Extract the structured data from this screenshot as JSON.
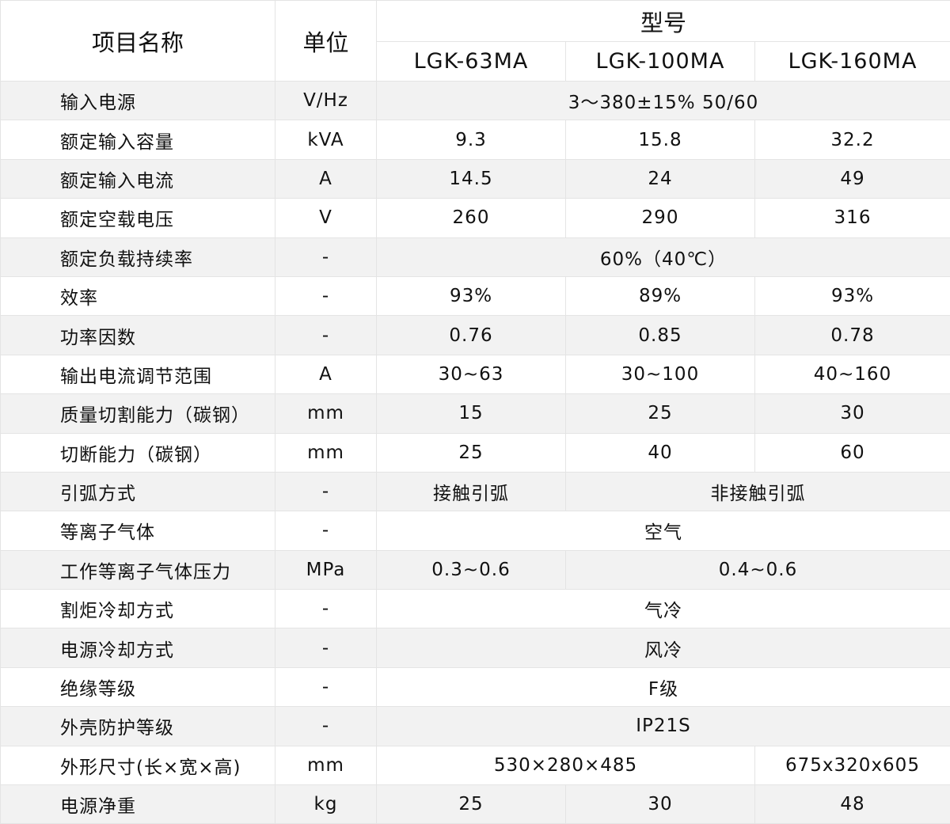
{
  "header": {
    "item": "项目名称",
    "unit": "单位",
    "model": "型号",
    "models": [
      "LGK-63MA",
      "LGK-100MA",
      "LGK-160MA"
    ]
  },
  "rows": [
    {
      "name": "输入电源",
      "unit": "V/Hz",
      "cells": [
        {
          "v": "3～380±15% 50/60",
          "span": 3
        }
      ]
    },
    {
      "name": "额定输入容量",
      "unit": "kVA",
      "cells": [
        {
          "v": "9.3",
          "span": 1
        },
        {
          "v": "15.8",
          "span": 1
        },
        {
          "v": "32.2",
          "span": 1
        }
      ]
    },
    {
      "name": "额定输入电流",
      "unit": "A",
      "cells": [
        {
          "v": "14.5",
          "span": 1
        },
        {
          "v": "24",
          "span": 1
        },
        {
          "v": "49",
          "span": 1
        }
      ]
    },
    {
      "name": "额定空载电压",
      "unit": "V",
      "cells": [
        {
          "v": "260",
          "span": 1
        },
        {
          "v": "290",
          "span": 1
        },
        {
          "v": "316",
          "span": 1
        }
      ]
    },
    {
      "name": "额定负载持续率",
      "unit": "-",
      "cells": [
        {
          "v": "60%（40℃）",
          "span": 3
        }
      ]
    },
    {
      "name": "效率",
      "unit": "-",
      "cells": [
        {
          "v": "93%",
          "span": 1
        },
        {
          "v": "89%",
          "span": 1
        },
        {
          "v": "93%",
          "span": 1
        }
      ]
    },
    {
      "name": "功率因数",
      "unit": "-",
      "cells": [
        {
          "v": "0.76",
          "span": 1
        },
        {
          "v": "0.85",
          "span": 1
        },
        {
          "v": "0.78",
          "span": 1
        }
      ]
    },
    {
      "name": "输出电流调节范围",
      "unit": "A",
      "cells": [
        {
          "v": "30~63",
          "span": 1
        },
        {
          "v": "30~100",
          "span": 1
        },
        {
          "v": "40~160",
          "span": 1
        }
      ]
    },
    {
      "name": "质量切割能力（碳钢）",
      "unit": "mm",
      "cells": [
        {
          "v": "15",
          "span": 1
        },
        {
          "v": "25",
          "span": 1
        },
        {
          "v": "30",
          "span": 1
        }
      ]
    },
    {
      "name": "切断能力（碳钢）",
      "unit": "mm",
      "cells": [
        {
          "v": "25",
          "span": 1
        },
        {
          "v": "40",
          "span": 1
        },
        {
          "v": "60",
          "span": 1
        }
      ]
    },
    {
      "name": "引弧方式",
      "unit": "-",
      "cells": [
        {
          "v": "接触引弧",
          "span": 1
        },
        {
          "v": "非接触引弧",
          "span": 2
        }
      ]
    },
    {
      "name": "等离子气体",
      "unit": "-",
      "cells": [
        {
          "v": "空气",
          "span": 3
        }
      ]
    },
    {
      "name": "工作等离子气体压力",
      "unit": "MPa",
      "cells": [
        {
          "v": "0.3~0.6",
          "span": 1
        },
        {
          "v": "0.4~0.6",
          "span": 2
        }
      ]
    },
    {
      "name": "割炬冷却方式",
      "unit": "-",
      "cells": [
        {
          "v": "气冷",
          "span": 3
        }
      ]
    },
    {
      "name": "电源冷却方式",
      "unit": "-",
      "cells": [
        {
          "v": "风冷",
          "span": 3
        }
      ]
    },
    {
      "name": "绝缘等级",
      "unit": "-",
      "cells": [
        {
          "v": "F级",
          "span": 3
        }
      ]
    },
    {
      "name": "外壳防护等级",
      "unit": "-",
      "cells": [
        {
          "v": "IP21S",
          "span": 3
        }
      ]
    },
    {
      "name": "外形尺寸(长×宽×高)",
      "unit": "mm",
      "cells": [
        {
          "v": "530×280×485",
          "span": 2
        },
        {
          "v": "675x320x605",
          "span": 1
        }
      ]
    },
    {
      "name": "电源净重",
      "unit": "kg",
      "cells": [
        {
          "v": "25",
          "span": 1
        },
        {
          "v": "30",
          "span": 1
        },
        {
          "v": "48",
          "span": 1
        }
      ]
    }
  ]
}
